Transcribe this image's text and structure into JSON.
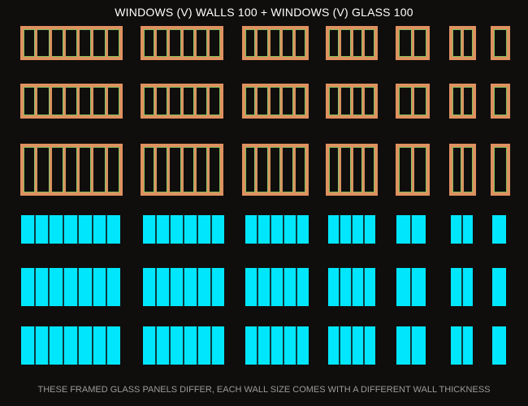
{
  "title": "WINDOWS (V) WALLS 100 + WINDOWS (V) GLASS 100",
  "footer": "THESE FRAMED GLASS PANELS DIFFER, EACH WALL SIZE COMES WITH A DIFFERENT WALL THICKNESS",
  "colors": {
    "frame": "#df9160",
    "frame_edge": "#7bbf5a",
    "glass": "#00e6fc",
    "background": "#100e0d"
  },
  "frame_panel_counts": [
    7,
    6,
    5,
    4,
    2,
    2,
    1
  ],
  "glass_panel_counts": [
    7,
    6,
    5,
    4,
    2,
    2,
    1
  ],
  "frame_rows": 3,
  "glass_rows": 3
}
